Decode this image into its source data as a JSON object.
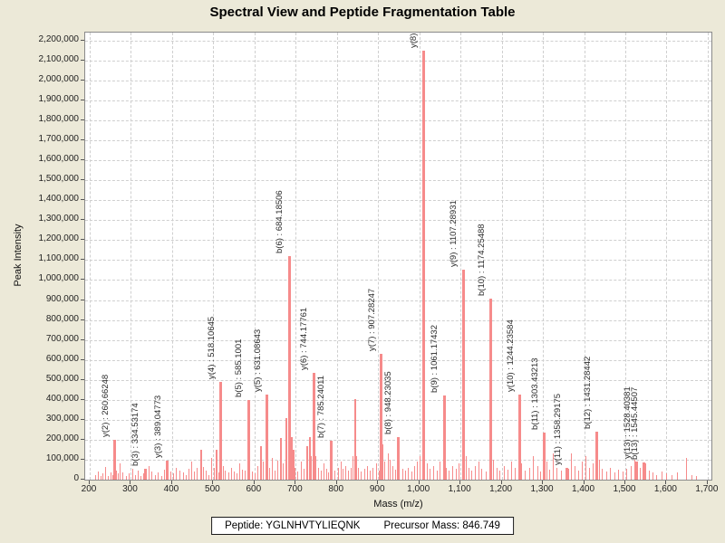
{
  "title": "Spectral View and Peptide Fragmentation Table",
  "footer": {
    "peptide_text": "Peptide: YGLNHVTYLIEQNK",
    "precursor_text": "Precursor Mass: 846.749"
  },
  "chart_data": {
    "type": "bar",
    "title": "Spectral View and Peptide Fragmentation Table",
    "xlabel": "Mass (m/z)",
    "ylabel": "Peak Intensity",
    "xlim": [
      189,
      1709
    ],
    "ylim": [
      0,
      2240000
    ],
    "x_tick_min": 200,
    "x_tick_max": 1700,
    "x_tick_step": 100,
    "y_tick_min": 0,
    "y_tick_max": 2200000,
    "y_tick_step": 100000,
    "grid": "dashed, both axes",
    "legend": "none",
    "peak_color": "#f68b8b",
    "labeled_peaks": [
      {
        "label": "y(2) : 260.66248",
        "mz": 260.66248,
        "intensity": 200000
      },
      {
        "label": "b(3) : 334.53174",
        "mz": 334.53174,
        "intensity": 55000
      },
      {
        "label": "y(3) : 389.04773",
        "mz": 389.04773,
        "intensity": 95000
      },
      {
        "label": "y(4) : 518.10645",
        "mz": 518.10645,
        "intensity": 490000
      },
      {
        "label": "b(5) : 585.1001",
        "mz": 585.1001,
        "intensity": 400000
      },
      {
        "label": "y(5) : 631.08643",
        "mz": 631.08643,
        "intensity": 425000
      },
      {
        "label": "b(6) : 684.18506",
        "mz": 684.18506,
        "intensity": 1120000
      },
      {
        "label": "y(6) : 744.17761",
        "mz": 744.17761,
        "intensity": 535000
      },
      {
        "label": "b(7) : 785.24011",
        "mz": 785.24011,
        "intensity": 195000
      },
      {
        "label": "y(7) : 907.28247",
        "mz": 907.28247,
        "intensity": 630000
      },
      {
        "label": "b(8) : 948.23035",
        "mz": 948.23035,
        "intensity": 215000
      },
      {
        "label": "y(8) :",
        "mz": 1009.5,
        "intensity": 2150000
      },
      {
        "label": "b(9) : 1061.17432",
        "mz": 1061.17432,
        "intensity": 420000
      },
      {
        "label": "y(9) : 1107.28931",
        "mz": 1107.28931,
        "intensity": 1050000
      },
      {
        "label": "b(10) : 1174.25488",
        "mz": 1174.25488,
        "intensity": 905000
      },
      {
        "label": "y(10) : 1244.23584",
        "mz": 1244.23584,
        "intensity": 425000
      },
      {
        "label": "b(11) : 1303.43213",
        "mz": 1303.43213,
        "intensity": 235000
      },
      {
        "label": "y(11) : 1358.29175",
        "mz": 1358.29175,
        "intensity": 60000
      },
      {
        "label": "b(12) : 1431.28442",
        "mz": 1431.28442,
        "intensity": 240000
      },
      {
        "label": "y(13) : 1528.40381",
        "mz": 1528.40381,
        "intensity": 90000
      },
      {
        "label": "b(13) : 1545.44507",
        "mz": 1545.44507,
        "intensity": 85000
      }
    ],
    "noise_peaks": [
      [
        215,
        25000
      ],
      [
        222,
        40000
      ],
      [
        228,
        20000
      ],
      [
        233,
        30000
      ],
      [
        240,
        65000
      ],
      [
        247,
        20000
      ],
      [
        252,
        35000
      ],
      [
        258,
        25000
      ],
      [
        267,
        45000
      ],
      [
        271,
        30000
      ],
      [
        275,
        80000
      ],
      [
        282,
        35000
      ],
      [
        290,
        20000
      ],
      [
        297,
        30000
      ],
      [
        305,
        55000
      ],
      [
        312,
        25000
      ],
      [
        318,
        45000
      ],
      [
        325,
        20000
      ],
      [
        331,
        30000
      ],
      [
        339,
        25000
      ],
      [
        345,
        70000
      ],
      [
        352,
        40000
      ],
      [
        360,
        25000
      ],
      [
        368,
        35000
      ],
      [
        375,
        20000
      ],
      [
        382,
        50000
      ],
      [
        390,
        30000
      ],
      [
        397,
        40000
      ],
      [
        405,
        30000
      ],
      [
        412,
        60000
      ],
      [
        420,
        45000
      ],
      [
        428,
        35000
      ],
      [
        435,
        25000
      ],
      [
        441,
        55000
      ],
      [
        448,
        90000
      ],
      [
        455,
        40000
      ],
      [
        462,
        60000
      ],
      [
        470,
        150000
      ],
      [
        477,
        65000
      ],
      [
        484,
        45000
      ],
      [
        490,
        25000
      ],
      [
        496,
        110000
      ],
      [
        503,
        60000
      ],
      [
        509,
        150000
      ],
      [
        514,
        35000
      ],
      [
        525,
        70000
      ],
      [
        531,
        45000
      ],
      [
        538,
        35000
      ],
      [
        545,
        60000
      ],
      [
        552,
        40000
      ],
      [
        558,
        30000
      ],
      [
        565,
        80000
      ],
      [
        572,
        50000
      ],
      [
        578,
        45000
      ],
      [
        589,
        55000
      ],
      [
        596,
        40000
      ],
      [
        602,
        30000
      ],
      [
        609,
        70000
      ],
      [
        616,
        170000
      ],
      [
        622,
        90000
      ],
      [
        628,
        45000
      ],
      [
        638,
        60000
      ],
      [
        645,
        110000
      ],
      [
        651,
        45000
      ],
      [
        658,
        95000
      ],
      [
        665,
        210000
      ],
      [
        671,
        80000
      ],
      [
        677,
        310000
      ],
      [
        690,
        215000
      ],
      [
        694,
        150000
      ],
      [
        700,
        60000
      ],
      [
        707,
        40000
      ],
      [
        714,
        90000
      ],
      [
        721,
        55000
      ],
      [
        728,
        170000
      ],
      [
        735,
        215000
      ],
      [
        740,
        120000
      ],
      [
        750,
        120000
      ],
      [
        756,
        60000
      ],
      [
        763,
        45000
      ],
      [
        770,
        80000
      ],
      [
        776,
        55000
      ],
      [
        781,
        35000
      ],
      [
        790,
        70000
      ],
      [
        797,
        45000
      ],
      [
        804,
        60000
      ],
      [
        811,
        90000
      ],
      [
        817,
        55000
      ],
      [
        823,
        70000
      ],
      [
        830,
        45000
      ],
      [
        836,
        60000
      ],
      [
        841,
        120000
      ],
      [
        845.5,
        405000
      ],
      [
        848,
        120000
      ],
      [
        853,
        60000
      ],
      [
        860,
        40000
      ],
      [
        868,
        55000
      ],
      [
        875,
        70000
      ],
      [
        882,
        45000
      ],
      [
        889,
        60000
      ],
      [
        897,
        80000
      ],
      [
        903,
        45000
      ],
      [
        911,
        175000
      ],
      [
        918,
        90000
      ],
      [
        925,
        130000
      ],
      [
        931,
        100000
      ],
      [
        938,
        70000
      ],
      [
        944,
        50000
      ],
      [
        953,
        90000
      ],
      [
        960,
        55000
      ],
      [
        968,
        45000
      ],
      [
        975,
        60000
      ],
      [
        982,
        40000
      ],
      [
        989,
        70000
      ],
      [
        996,
        90000
      ],
      [
        1003,
        120000
      ],
      [
        1013,
        100000
      ],
      [
        1020,
        80000
      ],
      [
        1028,
        55000
      ],
      [
        1036,
        70000
      ],
      [
        1044,
        45000
      ],
      [
        1052,
        90000
      ],
      [
        1066,
        60000
      ],
      [
        1074,
        45000
      ],
      [
        1082,
        70000
      ],
      [
        1090,
        55000
      ],
      [
        1097,
        80000
      ],
      [
        1114,
        120000
      ],
      [
        1121,
        60000
      ],
      [
        1129,
        45000
      ],
      [
        1137,
        70000
      ],
      [
        1145,
        90000
      ],
      [
        1153,
        55000
      ],
      [
        1163,
        40000
      ],
      [
        1181,
        100000
      ],
      [
        1189,
        60000
      ],
      [
        1197,
        45000
      ],
      [
        1208,
        70000
      ],
      [
        1216,
        50000
      ],
      [
        1225,
        90000
      ],
      [
        1233,
        60000
      ],
      [
        1250,
        80000
      ],
      [
        1258,
        45000
      ],
      [
        1268,
        60000
      ],
      [
        1278,
        120000
      ],
      [
        1288,
        70000
      ],
      [
        1296,
        40000
      ],
      [
        1310,
        90000
      ],
      [
        1318,
        50000
      ],
      [
        1327,
        130000
      ],
      [
        1336,
        60000
      ],
      [
        1345,
        45000
      ],
      [
        1363,
        55000
      ],
      [
        1371,
        130000
      ],
      [
        1379,
        70000
      ],
      [
        1388,
        45000
      ],
      [
        1397,
        90000
      ],
      [
        1406,
        120000
      ],
      [
        1415,
        60000
      ],
      [
        1424,
        80000
      ],
      [
        1438,
        100000
      ],
      [
        1446,
        55000
      ],
      [
        1455,
        40000
      ],
      [
        1464,
        60000
      ],
      [
        1475,
        35000
      ],
      [
        1485,
        50000
      ],
      [
        1495,
        40000
      ],
      [
        1505,
        55000
      ],
      [
        1516,
        70000
      ],
      [
        1524,
        100000
      ],
      [
        1537,
        60000
      ],
      [
        1551,
        80000
      ],
      [
        1559,
        45000
      ],
      [
        1568,
        35000
      ],
      [
        1578,
        25000
      ],
      [
        1590,
        40000
      ],
      [
        1602,
        30000
      ],
      [
        1615,
        25000
      ],
      [
        1628,
        35000
      ],
      [
        1650,
        110000
      ],
      [
        1662,
        25000
      ],
      [
        1673,
        20000
      ]
    ]
  }
}
